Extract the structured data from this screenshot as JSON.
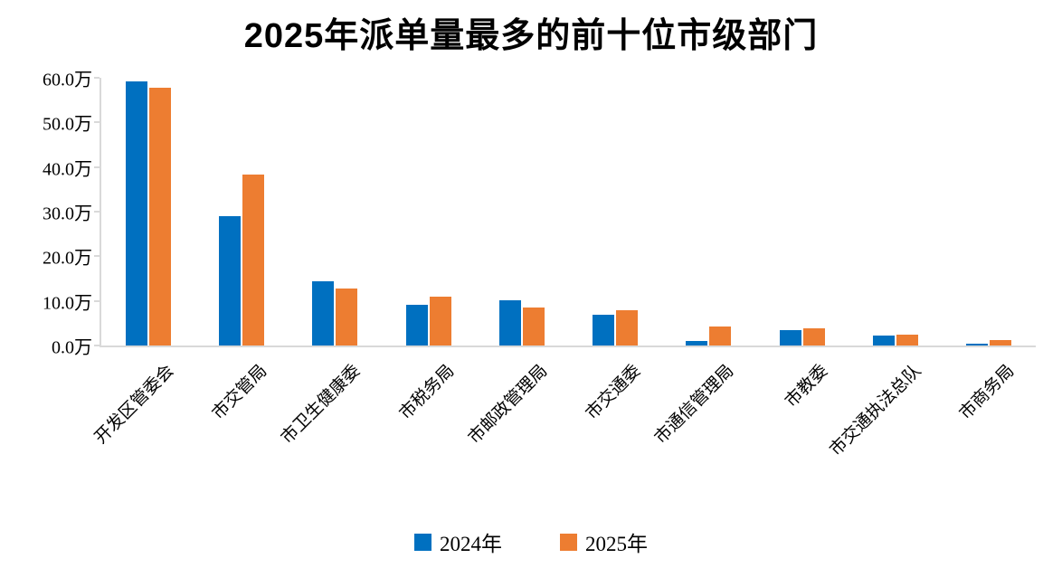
{
  "title": "2025年派单量最多的前十位市级部门",
  "chart_data": {
    "type": "bar",
    "title": "2025年派单量最多的前十位市级部门",
    "categories": [
      "开发区管委会",
      "市交管局",
      "市卫生健康委",
      "市税务局",
      "市邮政管理局",
      "市交通委",
      "市通信管理局",
      "市教委",
      "市交通执法总队",
      "市商务局"
    ],
    "series": [
      {
        "name": "2024年",
        "color": "#0070C0",
        "values": [
          59.2,
          29.0,
          14.4,
          9.1,
          10.1,
          6.8,
          1.0,
          3.5,
          2.2,
          0.4
        ]
      },
      {
        "name": "2025年",
        "color": "#ED7D31",
        "values": [
          57.7,
          38.3,
          12.8,
          10.9,
          8.5,
          7.9,
          4.3,
          3.8,
          2.4,
          1.2
        ]
      }
    ],
    "unit": "万",
    "xlabel": "",
    "ylabel": "",
    "ylim": [
      0,
      60
    ],
    "y_tick_labels": [
      "0.0万",
      "10.0万",
      "20.0万",
      "30.0万",
      "40.0万",
      "50.0万",
      "60.0万"
    ],
    "grid": false,
    "legend_position": "bottom",
    "x_label_rotation_deg": 45
  },
  "colors": {
    "series_2024": "#0070C0",
    "series_2025": "#ED7D31",
    "axis_line": "#d9d9d9",
    "text": "#000000",
    "background": "#ffffff"
  }
}
